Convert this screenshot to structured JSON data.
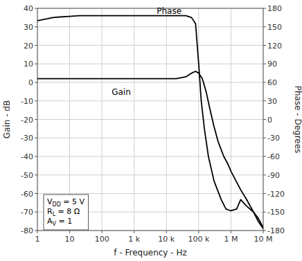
{
  "chart_data": {
    "type": "line",
    "x_label": "f - Frequency - Hz",
    "y_label": "Gain - dB",
    "y2_label": "Phase - Degrees",
    "log": "x",
    "grid": true,
    "xlim": [
      1,
      10000000
    ],
    "xticks": [
      1,
      10,
      100,
      {
        "value": 1000,
        "label": "1 k"
      },
      {
        "value": 10000,
        "label": "10 k"
      },
      {
        "value": 100000,
        "label": "100 k"
      },
      {
        "value": 1000000,
        "label": "1 M"
      },
      {
        "value": 10000000,
        "label": "10 M"
      }
    ],
    "ylim": [
      -80,
      40
    ],
    "yticks": [
      -80,
      -70,
      -60,
      -50,
      -40,
      -30,
      -20,
      -10,
      0,
      10,
      20,
      30,
      40
    ],
    "y2lim": [
      -180,
      180
    ],
    "y2ticks": [
      -180,
      -150,
      -120,
      -90,
      -60,
      -30,
      0,
      30,
      60,
      90,
      120,
      150,
      180
    ],
    "series": [
      {
        "color": "#000000",
        "x": [
          1,
          2,
          5,
          10,
          20,
          50,
          100,
          200,
          500,
          1000,
          2000,
          5000,
          10000,
          20000,
          40000,
          60000,
          80000,
          100000,
          130000,
          170000,
          220000,
          300000,
          400000,
          600000,
          800000,
          1000000,
          2000000,
          3000000,
          5000000,
          7000000,
          10000000
        ],
        "values": [
          2,
          2,
          2,
          2,
          2,
          2,
          2,
          2,
          2,
          2,
          2,
          2,
          2,
          2,
          3,
          5,
          6,
          5,
          2,
          -5,
          -14,
          -24,
          -32,
          -40,
          -44,
          -48,
          -58,
          -63,
          -70,
          -75,
          -79
        ]
      },
      {
        "color": "#000000",
        "axis": "y2",
        "x": [
          1,
          2,
          3,
          5,
          10,
          20,
          50,
          100,
          200,
          500,
          1000,
          2000,
          5000,
          10000,
          20000,
          40000,
          60000,
          80000,
          100000,
          120000,
          150000,
          200000,
          300000,
          500000,
          700000,
          1000000,
          1500000,
          2000000,
          3000000,
          5000000,
          7000000,
          10000000
        ],
        "values": [
          160,
          163,
          165,
          166,
          167,
          168,
          168,
          168,
          168,
          168,
          168,
          168,
          168,
          168,
          168,
          168,
          165,
          155,
          90,
          30,
          -15,
          -60,
          -100,
          -130,
          -145,
          -148,
          -145,
          -130,
          -140,
          -150,
          -160,
          -175
        ]
      }
    ],
    "annotations": [
      {
        "text": "Phase",
        "x": 5000,
        "y": 168,
        "axis": "y2"
      },
      {
        "text": "Gain",
        "x": 200,
        "y": -8
      }
    ],
    "note_box": [
      {
        "text": "V",
        "sub": "DD",
        "rest": " = 5 V"
      },
      {
        "text": "R",
        "sub": "L",
        "rest": " = 8 Ω"
      },
      {
        "text": "A",
        "sub": "V",
        "rest": " = 1"
      }
    ]
  }
}
